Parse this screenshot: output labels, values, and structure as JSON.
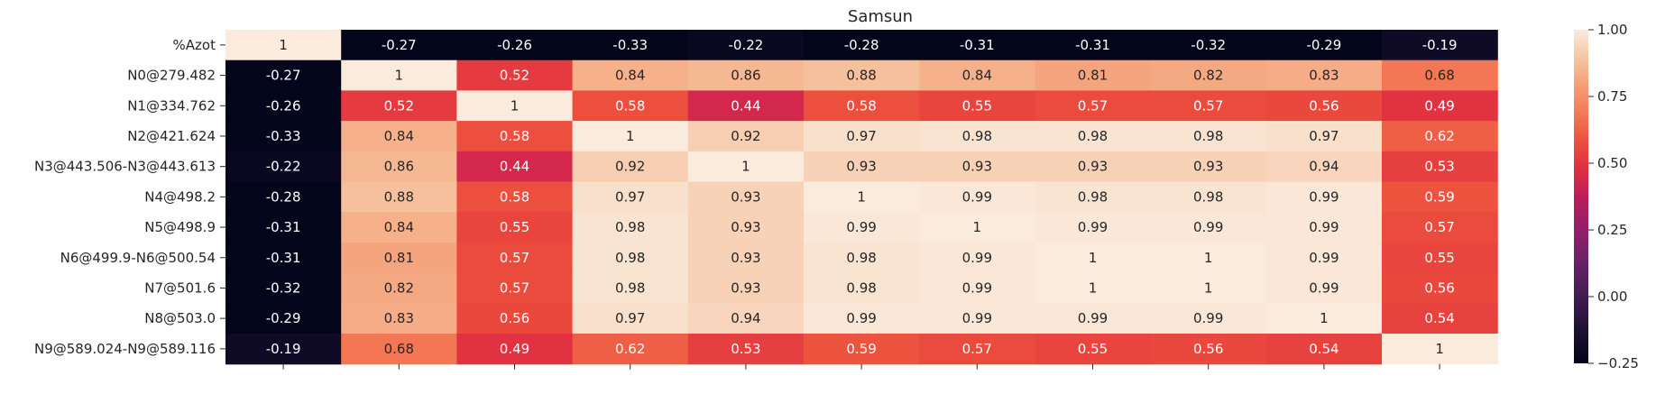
{
  "chart_data": {
    "type": "heatmap",
    "title": "Samsun",
    "xlabel": "",
    "ylabel": "",
    "rows": [
      "%Azot",
      "N0@279.482",
      "N1@334.762",
      "N2@421.624",
      "N3@443.506-N3@443.613",
      "N4@498.2",
      "N5@498.9",
      "N6@499.9-N6@500.54",
      "N7@501.6",
      "N8@503.0",
      "N9@589.024-N9@589.116"
    ],
    "x_tick_labels": [
      "",
      "",
      "",
      "",
      "",
      "",
      "",
      "",
      "",
      "",
      ""
    ],
    "values": [
      [
        1,
        -0.27,
        -0.26,
        -0.33,
        -0.22,
        -0.28,
        -0.31,
        -0.31,
        -0.32,
        -0.29,
        -0.19
      ],
      [
        -0.27,
        1,
        0.52,
        0.84,
        0.86,
        0.88,
        0.84,
        0.81,
        0.82,
        0.83,
        0.68
      ],
      [
        -0.26,
        0.52,
        1,
        0.58,
        0.44,
        0.58,
        0.55,
        0.57,
        0.57,
        0.56,
        0.49
      ],
      [
        -0.33,
        0.84,
        0.58,
        1,
        0.92,
        0.97,
        0.98,
        0.98,
        0.98,
        0.97,
        0.62
      ],
      [
        -0.22,
        0.86,
        0.44,
        0.92,
        1,
        0.93,
        0.93,
        0.93,
        0.93,
        0.94,
        0.53
      ],
      [
        -0.28,
        0.88,
        0.58,
        0.97,
        0.93,
        1,
        0.99,
        0.98,
        0.98,
        0.99,
        0.59
      ],
      [
        -0.31,
        0.84,
        0.55,
        0.98,
        0.93,
        0.99,
        1,
        0.99,
        0.99,
        0.99,
        0.57
      ],
      [
        -0.31,
        0.81,
        0.57,
        0.98,
        0.93,
        0.98,
        0.99,
        1,
        1,
        0.99,
        0.55
      ],
      [
        -0.32,
        0.82,
        0.57,
        0.98,
        0.93,
        0.98,
        0.99,
        1,
        1,
        0.99,
        0.56
      ],
      [
        -0.29,
        0.83,
        0.56,
        0.97,
        0.94,
        0.99,
        0.99,
        0.99,
        0.99,
        1,
        0.54
      ],
      [
        -0.19,
        0.68,
        0.49,
        0.62,
        0.53,
        0.59,
        0.57,
        0.55,
        0.56,
        0.54,
        1
      ]
    ],
    "vmin": -0.25,
    "vmax": 1.0,
    "colormap": "rocket",
    "annotations": true,
    "colorbar": {
      "ticks": [
        1.0,
        0.75,
        0.5,
        0.25,
        0.0,
        -0.25
      ],
      "tick_labels": [
        "1.00",
        "0.75",
        "0.50",
        "0.25",
        "0.00",
        "−0.25"
      ]
    },
    "grid": false,
    "legend": "colorbar-right"
  }
}
